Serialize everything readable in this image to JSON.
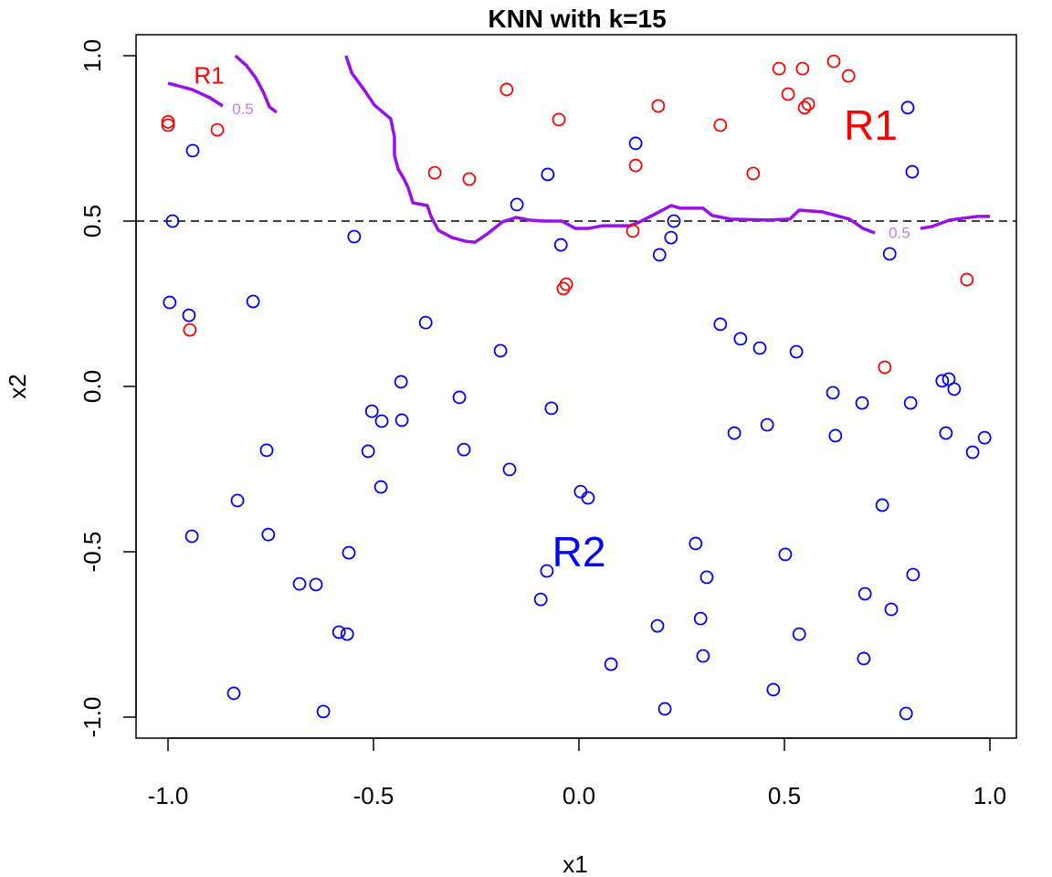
{
  "chart_data": {
    "type": "scatter",
    "title": "KNN with k=15",
    "xlabel": "x1",
    "ylabel": "x2",
    "xlim": [
      -1.07,
      1.07
    ],
    "ylim": [
      -1.07,
      1.07
    ],
    "x_ticks": [
      -1.0,
      -0.5,
      0.0,
      0.5,
      1.0
    ],
    "x_tick_labels": [
      "-1.0",
      "-0.5",
      "0.0",
      "0.5",
      "1.0"
    ],
    "y_ticks": [
      -1.0,
      -0.5,
      0.0,
      0.5,
      1.0
    ],
    "y_tick_labels": [
      "-1.0",
      "-0.5",
      "0.0",
      "0.5",
      "1.0"
    ],
    "grid": false,
    "colors": {
      "red": "#ff0000",
      "blue": "#0000ff",
      "boundary": "#9a10e8",
      "boundary_label": "#c27ef2"
    },
    "series": [
      {
        "name": "R1",
        "color": "#ff0000",
        "points": [
          [
            -1.0,
            0.8
          ],
          [
            -1.0,
            0.79
          ],
          [
            -0.88,
            0.776
          ],
          [
            -0.176,
            0.898
          ],
          [
            -0.049,
            0.807
          ],
          [
            -0.351,
            0.646
          ],
          [
            -0.267,
            0.627
          ],
          [
            0.138,
            0.668
          ],
          [
            0.193,
            0.848
          ],
          [
            0.487,
            0.961
          ],
          [
            0.544,
            0.961
          ],
          [
            0.62,
            0.983
          ],
          [
            0.656,
            0.939
          ],
          [
            0.509,
            0.884
          ],
          [
            0.549,
            0.843
          ],
          [
            0.558,
            0.854
          ],
          [
            0.344,
            0.79
          ],
          [
            0.424,
            0.644
          ],
          [
            0.131,
            0.47
          ],
          [
            -0.031,
            0.309
          ],
          [
            -0.038,
            0.296
          ],
          [
            -0.947,
            0.171
          ],
          [
            0.744,
            0.058
          ],
          [
            0.944,
            0.323
          ]
        ]
      },
      {
        "name": "R2",
        "color": "#0000ff",
        "points": [
          [
            -0.94,
            0.713
          ],
          [
            -0.989,
            0.5
          ],
          [
            -0.996,
            0.254
          ],
          [
            -0.949,
            0.215
          ],
          [
            -0.793,
            0.257
          ],
          [
            -0.547,
            0.453
          ],
          [
            -0.373,
            0.193
          ],
          [
            -0.191,
            0.108
          ],
          [
            -0.433,
            0.014
          ],
          [
            -0.504,
            -0.075
          ],
          [
            -0.48,
            -0.105
          ],
          [
            -0.431,
            -0.102
          ],
          [
            -0.291,
            -0.033
          ],
          [
            -0.513,
            -0.196
          ],
          [
            -0.28,
            -0.191
          ],
          [
            -0.169,
            -0.251
          ],
          [
            -0.482,
            -0.304
          ],
          [
            -0.76,
            -0.193
          ],
          [
            -0.831,
            -0.345
          ],
          [
            -0.942,
            -0.453
          ],
          [
            -0.756,
            -0.448
          ],
          [
            -0.56,
            -0.503
          ],
          [
            -0.68,
            -0.597
          ],
          [
            -0.64,
            -0.599
          ],
          [
            -0.584,
            -0.743
          ],
          [
            -0.564,
            -0.749
          ],
          [
            -0.84,
            -0.928
          ],
          [
            -0.622,
            -0.983
          ],
          [
            -0.151,
            0.55
          ],
          [
            -0.076,
            0.641
          ],
          [
            -0.044,
            0.428
          ],
          [
            0.138,
            0.735
          ],
          [
            0.196,
            0.398
          ],
          [
            0.224,
            0.45
          ],
          [
            0.231,
            0.5
          ],
          [
            -0.067,
            -0.066
          ],
          [
            0.004,
            -0.318
          ],
          [
            0.022,
            -0.337
          ],
          [
            -0.078,
            -0.558
          ],
          [
            -0.093,
            -0.644
          ],
          [
            0.078,
            -0.84
          ],
          [
            0.191,
            -0.724
          ],
          [
            0.209,
            -0.975
          ],
          [
            0.284,
            -0.475
          ],
          [
            0.311,
            -0.577
          ],
          [
            0.296,
            -0.702
          ],
          [
            0.302,
            -0.815
          ],
          [
            0.344,
            0.188
          ],
          [
            0.393,
            0.144
          ],
          [
            0.44,
            0.116
          ],
          [
            0.378,
            -0.141
          ],
          [
            0.458,
            -0.116
          ],
          [
            0.529,
            0.105
          ],
          [
            0.618,
            -0.019
          ],
          [
            0.624,
            -0.149
          ],
          [
            0.689,
            -0.05
          ],
          [
            0.807,
            -0.05
          ],
          [
            0.502,
            -0.508
          ],
          [
            0.536,
            -0.749
          ],
          [
            0.473,
            -0.917
          ],
          [
            0.696,
            -0.627
          ],
          [
            0.76,
            -0.674
          ],
          [
            0.693,
            -0.823
          ],
          [
            0.796,
            -0.989
          ],
          [
            0.738,
            -0.359
          ],
          [
            0.813,
            -0.569
          ],
          [
            0.8,
            0.843
          ],
          [
            0.811,
            0.649
          ],
          [
            0.756,
            0.401
          ],
          [
            0.884,
            0.017
          ],
          [
            0.9,
            0.022
          ],
          [
            0.913,
            -0.008
          ],
          [
            0.893,
            -0.141
          ],
          [
            0.958,
            -0.199
          ],
          [
            0.987,
            -0.155
          ]
        ]
      }
    ],
    "decision_boundary": {
      "level_label": "0.5",
      "segments": [
        [
          [
            -0.567,
            1.0
          ],
          [
            -0.553,
            0.948
          ],
          [
            -0.52,
            0.892
          ],
          [
            -0.498,
            0.851
          ],
          [
            -0.458,
            0.809
          ],
          [
            -0.449,
            0.754
          ],
          [
            -0.449,
            0.699
          ],
          [
            -0.44,
            0.657
          ],
          [
            -0.427,
            0.63
          ],
          [
            -0.416,
            0.602
          ],
          [
            -0.404,
            0.555
          ],
          [
            -0.369,
            0.547
          ],
          [
            -0.36,
            0.514
          ],
          [
            -0.342,
            0.472
          ],
          [
            -0.309,
            0.45
          ],
          [
            -0.276,
            0.439
          ],
          [
            -0.253,
            0.436
          ],
          [
            -0.22,
            0.464
          ],
          [
            -0.187,
            0.497
          ],
          [
            -0.153,
            0.511
          ],
          [
            -0.12,
            0.503
          ],
          [
            -0.087,
            0.5
          ],
          [
            -0.042,
            0.5
          ],
          [
            -0.009,
            0.478
          ],
          [
            0.024,
            0.478
          ],
          [
            0.058,
            0.486
          ],
          [
            0.124,
            0.486
          ],
          [
            0.147,
            0.497
          ],
          [
            0.191,
            0.525
          ],
          [
            0.224,
            0.547
          ],
          [
            0.247,
            0.539
          ],
          [
            0.302,
            0.539
          ],
          [
            0.324,
            0.517
          ],
          [
            0.369,
            0.506
          ],
          [
            0.458,
            0.503
          ],
          [
            0.513,
            0.506
          ],
          [
            0.536,
            0.533
          ],
          [
            0.591,
            0.528
          ],
          [
            0.658,
            0.506
          ],
          [
            0.691,
            0.478
          ],
          [
            0.72,
            0.464
          ]
        ],
        [
          [
            0.831,
            0.478
          ],
          [
            0.858,
            0.483
          ],
          [
            0.902,
            0.503
          ],
          [
            0.969,
            0.514
          ],
          [
            1.0,
            0.514
          ]
        ],
        [
          [
            -1.0,
            0.917
          ],
          [
            -0.942,
            0.898
          ],
          [
            -0.898,
            0.873
          ],
          [
            -0.867,
            0.848
          ]
        ],
        [
          [
            -0.836,
            1.0
          ],
          [
            -0.809,
            0.97
          ],
          [
            -0.787,
            0.934
          ],
          [
            -0.769,
            0.892
          ],
          [
            -0.753,
            0.845
          ],
          [
            -0.736,
            0.829
          ]
        ]
      ],
      "labels": [
        [
          0.78,
          0.465
        ],
        [
          -0.818,
          0.84
        ]
      ]
    },
    "reference_line": {
      "y": 0.5,
      "style": "dashed"
    },
    "annotations": [
      {
        "text": "R1",
        "x": -0.9,
        "y": 0.94,
        "color": "#ff0000",
        "size": "small"
      },
      {
        "text": "R1",
        "x": 0.71,
        "y": 0.79,
        "color": "#ff0000",
        "size": "large"
      },
      {
        "text": "R2",
        "x": 0.0,
        "y": -0.5,
        "color": "#0000ff",
        "size": "large"
      }
    ]
  }
}
